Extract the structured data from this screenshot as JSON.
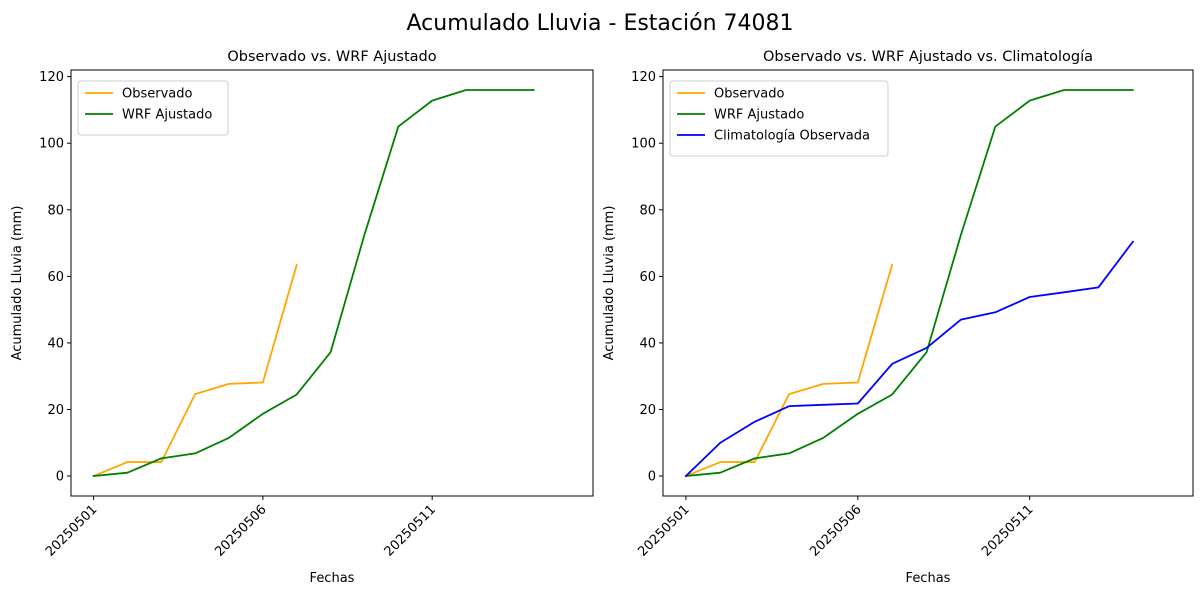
{
  "figure": {
    "suptitle": "Acumulado Lluvia - Estación 74081"
  },
  "colors": {
    "observado": "#ffa500",
    "wrf": "#008000",
    "clima": "#0000ff"
  },
  "chart_data": [
    {
      "type": "line",
      "title": "Observado vs. WRF Ajustado",
      "xlabel": "Fechas",
      "ylabel": "Acumulado Lluvia (mm)",
      "xlim": [
        "20250430 8h",
        "20250515 18h"
      ],
      "ylim": [
        -6,
        122
      ],
      "xticks": [
        "20250501",
        "20250506",
        "20250511"
      ],
      "yticks": [
        0,
        20,
        40,
        60,
        80,
        100,
        120
      ],
      "grid": false,
      "legend_position": "upper left",
      "series": [
        {
          "name": "Observado",
          "color": "#ffa500",
          "x": [
            "20250501",
            "20250502",
            "20250503",
            "20250504",
            "20250505",
            "20250506",
            "20250507"
          ],
          "y": [
            0,
            4.2,
            4.2,
            24.6,
            27.7,
            28.1,
            63.5
          ]
        },
        {
          "name": "WRF Ajustado",
          "color": "#008000",
          "x": [
            "20250501",
            "20250502",
            "20250503",
            "20250504",
            "20250505",
            "20250506",
            "20250507",
            "20250508",
            "20250509",
            "20250510",
            "20250511",
            "20250512",
            "20250513",
            "20250514"
          ],
          "y": [
            0,
            1.0,
            5.3,
            6.8,
            11.5,
            18.7,
            24.5,
            37.2,
            72.5,
            105.0,
            112.8,
            116.0,
            116.0,
            116.0
          ]
        }
      ]
    },
    {
      "type": "line",
      "title": "Observado vs. WRF Ajustado vs. Climatología",
      "xlabel": "Fechas",
      "ylabel": "Acumulado Lluvia (mm)",
      "xlim": [
        "20250430 8h",
        "20250515 18h"
      ],
      "ylim": [
        -6,
        122
      ],
      "xticks": [
        "20250501",
        "20250506",
        "20250511"
      ],
      "yticks": [
        0,
        20,
        40,
        60,
        80,
        100,
        120
      ],
      "grid": false,
      "legend_position": "upper left",
      "series": [
        {
          "name": "Observado",
          "color": "#ffa500",
          "x": [
            "20250501",
            "20250502",
            "20250503",
            "20250504",
            "20250505",
            "20250506",
            "20250507"
          ],
          "y": [
            0,
            4.2,
            4.2,
            24.6,
            27.7,
            28.1,
            63.5
          ]
        },
        {
          "name": "WRF Ajustado",
          "color": "#008000",
          "x": [
            "20250501",
            "20250502",
            "20250503",
            "20250504",
            "20250505",
            "20250506",
            "20250507",
            "20250508",
            "20250509",
            "20250510",
            "20250511",
            "20250512",
            "20250513",
            "20250514"
          ],
          "y": [
            0,
            1.0,
            5.3,
            6.8,
            11.5,
            18.7,
            24.5,
            37.2,
            72.5,
            105.0,
            112.8,
            116.0,
            116.0,
            116.0
          ]
        },
        {
          "name": "Climatología Observada",
          "color": "#0000ff",
          "x": [
            "20250501",
            "20250502",
            "20250503",
            "20250504",
            "20250505",
            "20250506",
            "20250507",
            "20250508",
            "20250509",
            "20250510",
            "20250511",
            "20250512",
            "20250513",
            "20250514"
          ],
          "y": [
            0,
            10.0,
            16.3,
            21.0,
            21.4,
            21.8,
            33.7,
            38.5,
            47.0,
            49.2,
            53.8,
            55.2,
            56.7,
            70.4
          ]
        }
      ]
    }
  ]
}
